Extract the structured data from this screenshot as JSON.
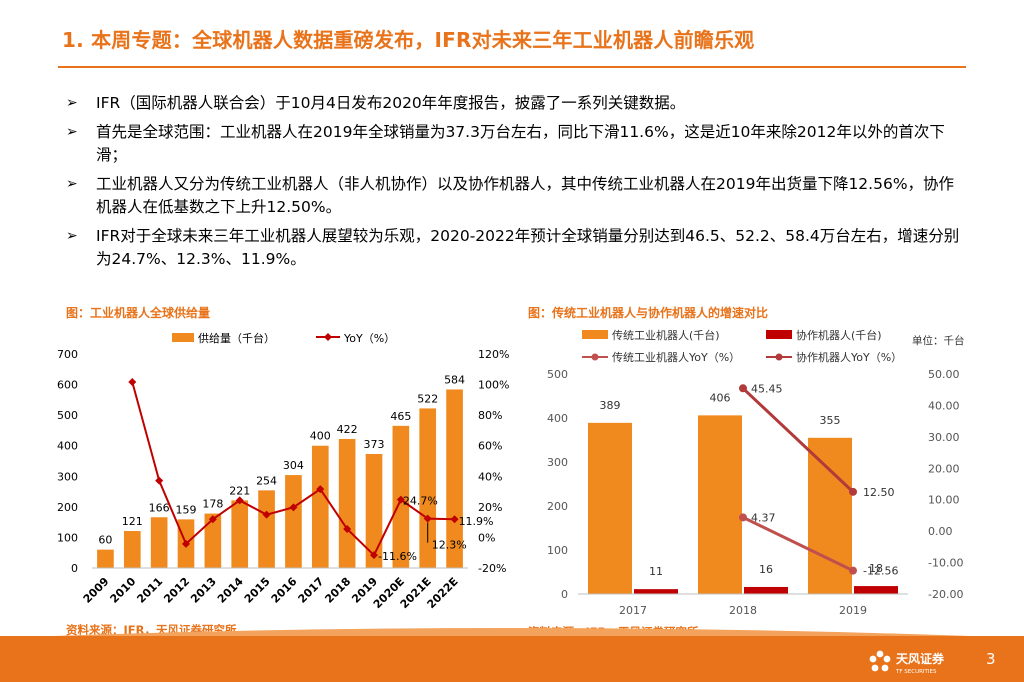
{
  "title": "1. 本周专题：全球机器人数据重磅发布，IFR对未来三年工业机器人前瞻乐观",
  "bullets": [
    "IFR（国际机器人联合会）于10月4日发布2020年年度报告，披露了一系列关键数据。",
    "首先是全球范围：工业机器人在2019年全球销量为37.3万台左右，同比下滑11.6%，这是近10年来除2012年以外的首次下滑；",
    "工业机器人又分为传统工业机器人（非人机协作）以及协作机器人，其中传统工业机器人在2019年出货量下降12.56%，协作机器人在低基数之下上升12.50%。",
    "IFR对于全球未来三年工业机器人展望较为乐观，2020-2022年预计全球销量分别达到46.5、52.2、58.4万台左右，增速分别为24.7%、12.3%、11.9%。"
  ],
  "chart1": {
    "title": "图：工业机器人全球供给量",
    "source": "资料来源：IFR，天风证券研究所",
    "legend_bar": "供给量（千台）",
    "legend_line": "YoY（%）"
  },
  "chart2": {
    "title": "图：传统工业机器人与协作机器人的增速对比",
    "source": "资料来源：IFR，天风证券研究所",
    "unit": "单位：千台",
    "legend": [
      "传统工业机器人(千台)",
      "协作机器人(千台)",
      "传统工业机器人YoY（%）",
      "协作机器人YoY（%）"
    ]
  },
  "footer": {
    "brand": "天风证券",
    "brand_en": "TF SECURITIES",
    "page": "3"
  },
  "colors": {
    "accent": "#E8731A",
    "bar_orange": "#F08A1E",
    "bar_red": "#C00000",
    "line_dark": "#B23A3A"
  },
  "chart_data": [
    {
      "type": "bar",
      "title": "图：工业机器人全球供给量",
      "categories": [
        "2009",
        "2010",
        "2011",
        "2012",
        "2013",
        "2014",
        "2015",
        "2016",
        "2017",
        "2018",
        "2019",
        "2020E",
        "2021E",
        "2022E"
      ],
      "series": [
        {
          "name": "供给量（千台）",
          "axis": "left",
          "values": [
            60,
            121,
            166,
            159,
            178,
            221,
            254,
            304,
            400,
            422,
            373,
            465,
            522,
            584
          ]
        },
        {
          "name": "YoY（%）",
          "type": "line",
          "axis": "right",
          "values": [
            null,
            101.7,
            37.2,
            -4.2,
            11.9,
            24.2,
            14.9,
            19.7,
            31.6,
            5.5,
            -11.6,
            24.7,
            12.3,
            11.9
          ]
        }
      ],
      "bar_labels": [
        "60",
        "121",
        "166",
        "159",
        "178",
        "221",
        "254",
        "304",
        "400",
        "422",
        "373",
        "465",
        "522",
        "584"
      ],
      "line_labels": {
        "10": "-11.6%",
        "11": "24.7%",
        "12": "12.3%",
        "13": "11.9%"
      },
      "ylim_left": [
        0,
        700
      ],
      "yticks_left": [
        "0",
        "100",
        "200",
        "300",
        "400",
        "500",
        "600",
        "700"
      ],
      "ylim_right": [
        -20,
        120
      ],
      "yticks_right": [
        "-20%",
        "0%",
        "20%",
        "40%",
        "60%",
        "80%",
        "100%",
        "120%"
      ]
    },
    {
      "type": "bar",
      "title": "图：传统工业机器人与协作机器人的增速对比",
      "categories": [
        "2017",
        "2018",
        "2019"
      ],
      "series": [
        {
          "name": "传统工业机器人(千台)",
          "axis": "left",
          "values": [
            389,
            406,
            355
          ],
          "labels": [
            "389",
            "406",
            "355"
          ]
        },
        {
          "name": "协作机器人(千台)",
          "axis": "left",
          "values": [
            11,
            16,
            18
          ],
          "labels": [
            "11",
            "16",
            "18"
          ]
        },
        {
          "name": "传统工业机器人YoY（%）",
          "type": "line",
          "axis": "right",
          "values": [
            null,
            4.37,
            -12.56
          ],
          "labels": [
            "",
            "4.37",
            "-12.56"
          ]
        },
        {
          "name": "协作机器人YoY（%）",
          "type": "line",
          "axis": "right",
          "values": [
            null,
            45.45,
            12.5
          ],
          "labels": [
            "",
            "45.45",
            "12.50"
          ]
        }
      ],
      "ylim_left": [
        0,
        500
      ],
      "yticks_left": [
        "0",
        "100",
        "200",
        "300",
        "400",
        "500"
      ],
      "ylim_right": [
        -20,
        50
      ],
      "yticks_right": [
        "-20.00",
        "-10.00",
        "0.00",
        "10.00",
        "20.00",
        "30.00",
        "40.00",
        "50.00"
      ]
    }
  ]
}
